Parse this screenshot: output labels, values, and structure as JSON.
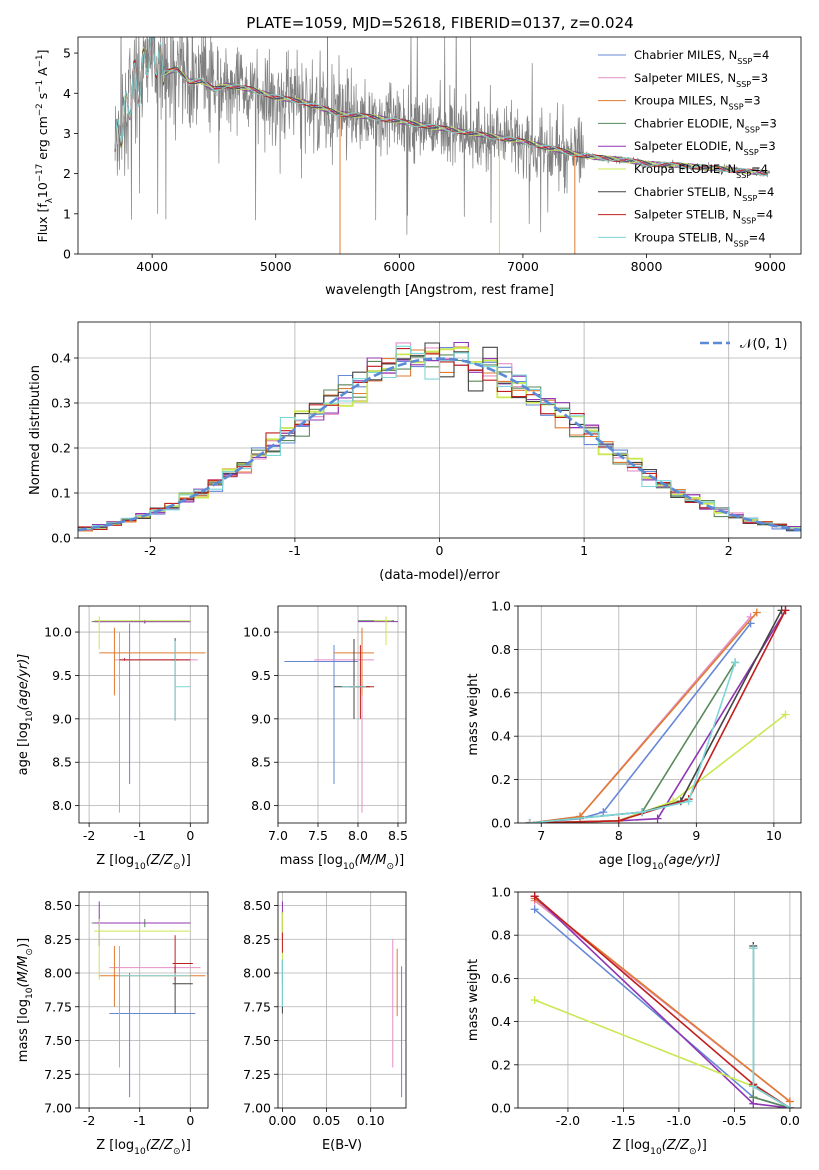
{
  "figure_title": "PLATE=1059, MJD=52618, FIBERID=0137, z=0.024",
  "colors": [
    "#6688d6",
    "#e58fc6",
    "#e07b30",
    "#5a8a5c",
    "#9035b3",
    "#c9e852",
    "#444444",
    "#c11f1f",
    "#7dd6d8"
  ],
  "chart_data": [
    {
      "id": "spectrum",
      "type": "line",
      "title": "PLATE=1059, MJD=52618, FIBERID=0137, z=0.024",
      "xlabel": "wavelength [Angstrom, rest frame]",
      "ylabel_main": "Flux [f",
      "ylabel_sub": "λ",
      "ylabel_rest": "10",
      "ylabel_exp1": "−17",
      "ylabel_mid": " erg cm",
      "ylabel_exp2": "−2",
      "ylabel_s": " s",
      "ylabel_exp3": "−1",
      "ylabel_end": " A",
      "ylabel_exp4": "−1",
      "ylabel_close": "]",
      "xlim": [
        3400,
        9250
      ],
      "ylim": [
        0,
        5.4
      ],
      "xticks": [
        4000,
        5000,
        6000,
        7000,
        8000,
        9000
      ],
      "yticks": [
        0,
        1,
        2,
        3,
        4,
        5
      ],
      "legend_position": "top-right",
      "legend": [
        {
          "pre": "Chabrier MILES, N",
          "sub": "SSP",
          "post": "=4"
        },
        {
          "pre": "Salpeter MILES, N",
          "sub": "SSP",
          "post": "=3"
        },
        {
          "pre": "Kroupa MILES, N",
          "sub": "SSP",
          "post": "=3"
        },
        {
          "pre": "Chabrier ELODIE, N",
          "sub": "SSP",
          "post": "=3"
        },
        {
          "pre": "Salpeter ELODIE, N",
          "sub": "SSP",
          "post": "=3"
        },
        {
          "pre": "Kroupa ELODIE, N",
          "sub": "SSP",
          "post": "=4"
        },
        {
          "pre": "Chabrier STELIB, N",
          "sub": "SSP",
          "post": "=4"
        },
        {
          "pre": "Salpeter STELIB, N",
          "sub": "SSP",
          "post": "=4"
        },
        {
          "pre": "Kroupa STELIB, N",
          "sub": "SSP",
          "post": "=4"
        }
      ],
      "data_color": "#808080",
      "data_range": [
        3700,
        9000
      ],
      "continuum": {
        "x": [
          3700,
          3750,
          3800,
          3850,
          3900,
          3950,
          4000,
          4050,
          4100,
          4200,
          4300,
          4400,
          4500,
          4600,
          4800,
          5000,
          5200,
          5500,
          5800,
          6000,
          6200,
          6500,
          6800,
          7000,
          7200,
          7400,
          7600,
          7800,
          8000,
          8300,
          8600,
          9000
        ],
        "y": [
          2.6,
          3.2,
          3.6,
          4.3,
          4.2,
          4.9,
          5.1,
          4.8,
          4.5,
          4.6,
          4.3,
          4.3,
          4.1,
          4.2,
          4.1,
          3.9,
          3.8,
          3.5,
          3.4,
          3.3,
          3.2,
          3.05,
          2.9,
          2.8,
          2.65,
          2.5,
          2.4,
          2.35,
          2.25,
          2.2,
          2.12,
          2.0
        ]
      },
      "model_cutoffs": [
        {
          "color": 2,
          "x": 7420
        },
        {
          "color": 5,
          "x": 6810
        },
        {
          "color": 2,
          "x": 5520
        }
      ]
    },
    {
      "id": "residual-histogram",
      "type": "bar",
      "xlabel": "(data-model)/error",
      "ylabel": "Normed distribution",
      "xlim": [
        -2.5,
        2.5
      ],
      "ylim": [
        0,
        0.48
      ],
      "xticks": [
        -2,
        -1,
        0,
        1,
        2
      ],
      "yticks": [
        0.0,
        0.1,
        0.2,
        0.3,
        0.4
      ],
      "bin_width": 0.1,
      "legend_label": "𝒩(0, 1)",
      "legend_position": "top-right",
      "gaussian_color": "#5b8bd6"
    },
    {
      "id": "age-vs-Z",
      "type": "scatter",
      "xlabel_pre": "Z [log",
      "xlabel_sub": "10",
      "xlabel_post": "(Z/Z",
      "xlabel_sub2": "⊙",
      "xlabel_end": ")]",
      "ylabel_pre": "age  [log",
      "ylabel_sub": "10",
      "ylabel_post": "(age/yr)]",
      "xlim": [
        -2.2,
        0.35
      ],
      "ylim": [
        7.8,
        10.3
      ],
      "xticks": [
        -2,
        -1,
        0
      ],
      "yticks": [
        8.0,
        8.5,
        9.0,
        9.5,
        10.0
      ],
      "errorbars": [
        {
          "c": 0,
          "x": -1.2,
          "y": 9.68,
          "x0": -1.4,
          "x1": 0.0,
          "y0": 8.25,
          "y1": 10.1
        },
        {
          "c": 1,
          "x": -1.4,
          "y": 9.68,
          "x0": -1.5,
          "x1": 0.15,
          "y0": 7.92,
          "y1": 10.0
        },
        {
          "c": 2,
          "x": -1.5,
          "y": 9.76,
          "x0": -1.8,
          "x1": 0.3,
          "y0": 9.27,
          "y1": 10.05
        },
        {
          "c": 3,
          "x": -0.9,
          "y": 10.12,
          "x0": -1.95,
          "x1": 0.0,
          "y0": 10.1,
          "y1": 10.14
        },
        {
          "c": 4,
          "x": -0.9,
          "y": 10.12,
          "x0": -1.9,
          "x1": 0.0,
          "y0": 10.1,
          "y1": 10.14
        },
        {
          "c": 5,
          "x": -1.8,
          "y": 10.13,
          "x0": -1.9,
          "x1": 0.0,
          "y0": 9.8,
          "y1": 10.18
        },
        {
          "c": 6,
          "x": -0.3,
          "y": 9.68,
          "x0": -0.35,
          "x1": -0.25,
          "y0": 8.98,
          "y1": 9.93
        },
        {
          "c": 7,
          "x": -1.3,
          "y": 9.68,
          "x0": -1.4,
          "x1": 0.0,
          "y0": 9.67,
          "y1": 9.7
        },
        {
          "c": 8,
          "x": -0.3,
          "y": 9.37,
          "x0": -0.3,
          "x1": 0.0,
          "y0": 8.98,
          "y1": 9.9
        }
      ]
    },
    {
      "id": "age-vs-mass",
      "type": "scatter",
      "xlabel_pre": "mass [log",
      "xlabel_sub": "10",
      "xlabel_post": "(M/M",
      "xlabel_sub2": "⊙",
      "xlabel_end": ")]",
      "xlim": [
        7.0,
        8.6
      ],
      "ylim": [
        7.8,
        10.3
      ],
      "xticks": [
        7.0,
        7.5,
        8.0,
        8.5
      ],
      "yticks": [
        8.0,
        8.5,
        9.0,
        9.5,
        10.0
      ],
      "errorbars": [
        {
          "c": 0,
          "x": 7.7,
          "y": 9.66,
          "x0": 7.08,
          "x1": 8.0,
          "y0": 8.25,
          "y1": 9.85
        },
        {
          "c": 1,
          "x": 8.05,
          "y": 9.68,
          "x0": 7.45,
          "x1": 8.2,
          "y0": 7.92,
          "y1": 10.0
        },
        {
          "c": 2,
          "x": 8.05,
          "y": 9.76,
          "x0": 7.7,
          "x1": 8.2,
          "y0": 9.27,
          "y1": 10.05
        },
        {
          "c": 3,
          "x": 8.35,
          "y": 10.13,
          "x0": 8.0,
          "x1": 8.45,
          "y0": 10.1,
          "y1": 10.16
        },
        {
          "c": 4,
          "x": 8.35,
          "y": 10.12,
          "x0": 8.0,
          "x1": 8.5,
          "y0": 10.1,
          "y1": 10.14
        },
        {
          "c": 5,
          "x": 8.35,
          "y": 10.13,
          "x0": 8.2,
          "x1": 8.42,
          "y0": 9.85,
          "y1": 10.18
        },
        {
          "c": 6,
          "x": 7.95,
          "y": 9.37,
          "x0": 7.7,
          "x1": 8.15,
          "y0": 9.0,
          "y1": 9.92
        },
        {
          "c": 7,
          "x": 8.03,
          "y": 9.37,
          "x0": 7.9,
          "x1": 8.2,
          "y0": 9.0,
          "y1": 9.85
        },
        {
          "c": 8,
          "x": 7.95,
          "y": 9.37,
          "x0": 7.8,
          "x1": 8.1,
          "y0": 9.36,
          "y1": 9.38
        }
      ]
    },
    {
      "id": "mass-weight-vs-age",
      "type": "line",
      "xlabel_pre": "age  [log",
      "xlabel_sub": "10",
      "xlabel_post": "(age/yr)]",
      "ylabel": "mass weight",
      "xlim": [
        6.7,
        10.35
      ],
      "ylim": [
        0,
        1.0
      ],
      "xticks": [
        7,
        8,
        9,
        10
      ],
      "yticks": [
        0.0,
        0.2,
        0.4,
        0.6,
        0.8,
        1.0
      ],
      "series": [
        {
          "c": 0,
          "x": [
            6.85,
            7.5,
            7.8,
            9.7
          ],
          "y": [
            0.0,
            0.02,
            0.05,
            0.92
          ]
        },
        {
          "c": 1,
          "x": [
            6.85,
            7.5,
            9.7
          ],
          "y": [
            0.0,
            0.03,
            0.95
          ]
        },
        {
          "c": 2,
          "x": [
            6.85,
            7.5,
            9.78
          ],
          "y": [
            0.0,
            0.03,
            0.97
          ]
        },
        {
          "c": 3,
          "x": [
            6.85,
            8.0,
            8.3,
            9.5
          ],
          "y": [
            0.0,
            0.01,
            0.05,
            0.74
          ]
        },
        {
          "c": 4,
          "x": [
            6.85,
            8.0,
            8.5,
            10.15
          ],
          "y": [
            0.0,
            0.01,
            0.02,
            0.98
          ]
        },
        {
          "c": 5,
          "x": [
            6.85,
            8.0,
            8.7,
            10.15
          ],
          "y": [
            0.0,
            0.01,
            0.1,
            0.5
          ]
        },
        {
          "c": 6,
          "x": [
            6.85,
            8.3,
            8.8,
            10.1
          ],
          "y": [
            0.0,
            0.05,
            0.1,
            0.98
          ]
        },
        {
          "c": 7,
          "x": [
            6.85,
            8.0,
            8.9,
            10.15
          ],
          "y": [
            0.0,
            0.01,
            0.11,
            0.98
          ]
        },
        {
          "c": 8,
          "x": [
            6.85,
            8.3,
            8.9,
            9.5
          ],
          "y": [
            0.0,
            0.05,
            0.1,
            0.74
          ]
        }
      ]
    },
    {
      "id": "mass-vs-Z",
      "type": "scatter",
      "xlabel_pre": "Z [log",
      "xlabel_sub": "10",
      "xlabel_post": "(Z/Z",
      "xlabel_sub2": "⊙",
      "xlabel_end": ")]",
      "ylabel_pre": "mass [log",
      "ylabel_sub": "10",
      "ylabel_post": "(M/M",
      "ylabel_sub2": "⊙",
      "ylabel_end": ")]",
      "xlim": [
        -2.2,
        0.35
      ],
      "ylim": [
        7.0,
        8.6
      ],
      "xticks": [
        -2,
        -1,
        0
      ],
      "yticks": [
        7.0,
        7.25,
        7.5,
        7.75,
        8.0,
        8.25,
        8.5
      ],
      "errorbars": [
        {
          "c": 0,
          "x": -1.2,
          "y": 7.7,
          "x0": -1.6,
          "x1": 0.1,
          "y0": 7.08,
          "y1": 8.0
        },
        {
          "c": 1,
          "x": -1.4,
          "y": 8.04,
          "x0": -1.6,
          "x1": 0.2,
          "y0": 7.3,
          "y1": 8.2
        },
        {
          "c": 2,
          "x": -1.5,
          "y": 7.98,
          "x0": -1.8,
          "x1": 0.3,
          "y0": 7.75,
          "y1": 8.2
        },
        {
          "c": 3,
          "x": -0.9,
          "y": 8.37,
          "x0": -1.95,
          "x1": 0.0,
          "y0": 8.34,
          "y1": 8.4
        },
        {
          "c": 4,
          "x": -1.8,
          "y": 8.37,
          "x0": -1.9,
          "x1": 0.0,
          "y0": 8.2,
          "y1": 8.53
        },
        {
          "c": 5,
          "x": -1.8,
          "y": 8.31,
          "x0": -1.9,
          "x1": 0.0,
          "y0": 7.95,
          "y1": 8.4
        },
        {
          "c": 6,
          "x": -0.3,
          "y": 7.92,
          "x0": -0.35,
          "x1": 0.05,
          "y0": 7.7,
          "y1": 8.05
        },
        {
          "c": 7,
          "x": -0.3,
          "y": 8.07,
          "x0": -0.35,
          "x1": 0.05,
          "y0": 7.95,
          "y1": 8.28
        },
        {
          "c": 8,
          "x": -0.3,
          "y": 7.98,
          "x0": -1.4,
          "x1": 0.0,
          "y0": 7.97,
          "y1": 8.0
        }
      ]
    },
    {
      "id": "mass-vs-ebv",
      "type": "scatter",
      "xlabel": "E(B-V)",
      "xlim": [
        -0.005,
        0.14
      ],
      "ylim": [
        7.0,
        8.6
      ],
      "xticks": [
        0.0,
        0.05,
        0.1
      ],
      "xtick_labels": [
        "0.00",
        "0.05",
        "0.10"
      ],
      "yticks": [
        7.0,
        7.25,
        7.5,
        7.75,
        8.0,
        8.25,
        8.5
      ],
      "errorbars": [
        {
          "c": 0,
          "x": 0.135,
          "y": 7.7,
          "x0": 0.135,
          "x1": 0.135,
          "y0": 7.08,
          "y1": 8.05
        },
        {
          "c": 1,
          "x": 0.125,
          "y": 8.0,
          "x0": 0.125,
          "x1": 0.125,
          "y0": 7.3,
          "y1": 8.25
        },
        {
          "c": 2,
          "x": 0.13,
          "y": 7.98,
          "x0": 0.13,
          "x1": 0.13,
          "y0": 7.68,
          "y1": 8.18
        },
        {
          "c": 3,
          "x": 0.0,
          "y": 8.37,
          "x0": 0.0,
          "x1": 0.0,
          "y0": 8.3,
          "y1": 8.45
        },
        {
          "c": 4,
          "x": 0.0,
          "y": 8.4,
          "x0": 0.0,
          "x1": 0.0,
          "y0": 8.25,
          "y1": 8.53
        },
        {
          "c": 5,
          "x": 0.0,
          "y": 8.3,
          "x0": 0.0,
          "x1": 0.0,
          "y0": 7.95,
          "y1": 8.45
        },
        {
          "c": 6,
          "x": 0.0,
          "y": 7.92,
          "x0": 0.0,
          "x1": 0.0,
          "y0": 7.7,
          "y1": 8.1
        },
        {
          "c": 7,
          "x": 0.0,
          "y": 8.2,
          "x0": 0.0,
          "x1": 0.0,
          "y0": 8.15,
          "y1": 8.3
        },
        {
          "c": 8,
          "x": 0.0,
          "y": 7.98,
          "x0": 0.0,
          "x1": 0.0,
          "y0": 7.75,
          "y1": 8.1
        }
      ]
    },
    {
      "id": "mass-weight-vs-Z",
      "type": "line",
      "xlabel_pre": "Z [log",
      "xlabel_sub": "10",
      "xlabel_post": "(Z/Z",
      "xlabel_sub2": "⊙",
      "xlabel_end": ")]",
      "ylabel": "mass weight",
      "xlim": [
        -2.45,
        0.1
      ],
      "ylim": [
        0,
        1.0
      ],
      "xticks": [
        -2.0,
        -1.5,
        -1.0,
        -0.5,
        0.0
      ],
      "yticks": [
        0.0,
        0.2,
        0.4,
        0.6,
        0.8,
        1.0
      ],
      "series": [
        {
          "c": 0,
          "x": [
            -2.3,
            -0.33,
            0.0
          ],
          "y": [
            0.92,
            0.05,
            0.0
          ]
        },
        {
          "c": 1,
          "x": [
            -2.3,
            0.0
          ],
          "y": [
            0.96,
            0.03
          ]
        },
        {
          "c": 2,
          "x": [
            -2.3,
            0.0
          ],
          "y": [
            0.97,
            0.03
          ]
        },
        {
          "c": 3,
          "x": [
            -0.33,
            -0.33,
            0.0
          ],
          "y": [
            0.74,
            0.05,
            0.0
          ]
        },
        {
          "c": 4,
          "x": [
            -2.3,
            -0.33,
            0.0
          ],
          "y": [
            0.98,
            0.02,
            0.0
          ]
        },
        {
          "c": 5,
          "x": [
            -2.3,
            -0.33,
            0.0
          ],
          "y": [
            0.5,
            0.1,
            0.0
          ]
        },
        {
          "c": 6,
          "x": [
            -0.33,
            -0.33,
            0.0
          ],
          "y": [
            0.75,
            0.1,
            0.0
          ]
        },
        {
          "c": 7,
          "x": [
            -2.3,
            -0.33,
            0.0
          ],
          "y": [
            0.98,
            0.11,
            0.0
          ]
        },
        {
          "c": 8,
          "x": [
            -0.33,
            -0.33,
            0.0
          ],
          "y": [
            0.74,
            0.1,
            0.0
          ]
        }
      ]
    }
  ]
}
